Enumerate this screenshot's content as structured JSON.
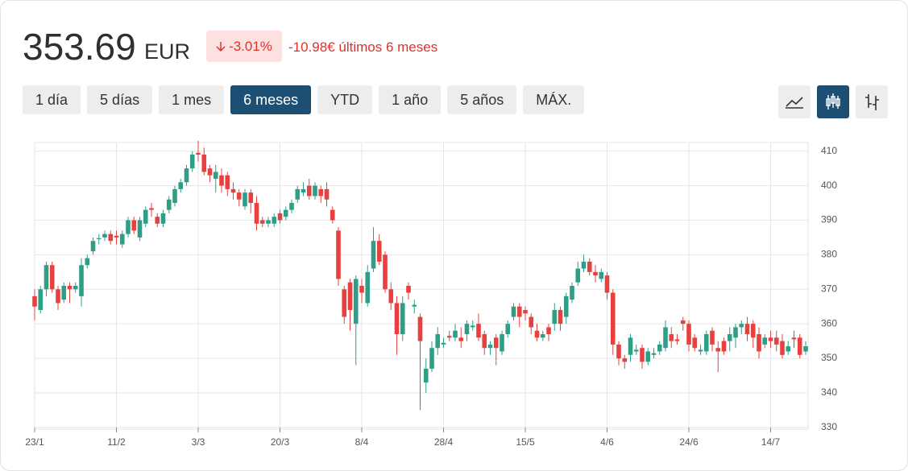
{
  "header": {
    "price": "353.69",
    "currency": "EUR",
    "change": "-3.01%",
    "change_period": "-10.98€ últimos 6 meses"
  },
  "ranges": [
    "1 día",
    "5 días",
    "1 mes",
    "6 meses",
    "YTD",
    "1 año",
    "5 años",
    "MÁX."
  ],
  "selected_range": "6 meses",
  "chart_data": {
    "type": "candlestick",
    "categories": [
      "23/1",
      null,
      null,
      null,
      null,
      null,
      null,
      null,
      null,
      null,
      null,
      null,
      null,
      null,
      "11/2",
      null,
      null,
      null,
      null,
      null,
      null,
      null,
      null,
      null,
      null,
      null,
      null,
      null,
      "3/3",
      null,
      null,
      null,
      null,
      null,
      null,
      null,
      null,
      null,
      null,
      null,
      null,
      null,
      "20/3",
      null,
      null,
      null,
      null,
      null,
      null,
      null,
      null,
      null,
      null,
      null,
      null,
      null,
      "8/4",
      null,
      null,
      null,
      null,
      null,
      null,
      null,
      null,
      null,
      null,
      null,
      null,
      null,
      "28/4",
      null,
      null,
      null,
      null,
      null,
      null,
      null,
      null,
      null,
      null,
      null,
      null,
      null,
      "15/5",
      null,
      null,
      null,
      null,
      null,
      null,
      null,
      null,
      null,
      null,
      null,
      null,
      null,
      "4/6",
      null,
      null,
      null,
      null,
      null,
      null,
      null,
      null,
      null,
      null,
      null,
      null,
      null,
      "24/6",
      null,
      null,
      null,
      null,
      null,
      null,
      null,
      null,
      null,
      null,
      null,
      null,
      null,
      "14/7",
      null,
      null,
      null,
      null,
      null,
      null
    ],
    "open": [
      368,
      364,
      370,
      377,
      370,
      367,
      371,
      370,
      368,
      377,
      381,
      384.5,
      385,
      386,
      385.5,
      383,
      386,
      390,
      385,
      389,
      393.5,
      391,
      389,
      393,
      395,
      399,
      401,
      405,
      409.5,
      409,
      405,
      402,
      403,
      403,
      399,
      398,
      394,
      398,
      395,
      390,
      389,
      389,
      392,
      391,
      393,
      396,
      398,
      400,
      397,
      399,
      399,
      393,
      387,
      370,
      372,
      360,
      371,
      366,
      376,
      384,
      380,
      370,
      366,
      357,
      371,
      365,
      362,
      343,
      347,
      353,
      354,
      356.5,
      356,
      356,
      357,
      359,
      360,
      357,
      353,
      356,
      352,
      357,
      362,
      365,
      364,
      362,
      358,
      356,
      359,
      360,
      364,
      362,
      367,
      372,
      376,
      378,
      375,
      373,
      374,
      369,
      354,
      350,
      351,
      352,
      353,
      349,
      351,
      352,
      353,
      357,
      355.5,
      361,
      360,
      356,
      352,
      352,
      358,
      353,
      355,
      355,
      356,
      359,
      360,
      360,
      357,
      354,
      356,
      356,
      355,
      352,
      356,
      356,
      352
    ],
    "high": [
      370,
      371,
      378,
      378,
      371,
      372,
      372,
      372,
      379,
      380,
      385,
      386,
      387,
      387,
      387,
      387,
      391,
      391,
      391,
      394,
      395,
      392,
      393,
      397,
      400,
      402,
      406,
      410,
      413,
      411,
      406,
      406,
      405,
      404,
      401,
      399,
      399,
      399,
      397,
      391,
      391,
      392,
      393,
      394,
      396,
      400,
      401,
      402,
      401,
      400,
      401,
      394,
      388,
      371,
      373,
      374,
      373,
      377,
      388,
      386,
      381,
      372,
      368,
      368,
      372,
      367,
      363,
      350,
      355,
      359,
      356,
      358,
      360,
      359,
      361,
      361,
      363,
      358,
      355,
      357,
      358,
      361,
      366,
      366,
      365,
      363,
      360,
      358,
      360,
      366,
      365,
      369,
      372,
      378,
      380,
      379,
      377,
      376,
      375,
      370,
      355,
      351,
      357,
      354,
      354,
      353,
      353,
      355,
      361,
      359,
      357,
      362,
      361,
      357,
      354,
      358,
      359,
      355,
      356,
      359,
      360,
      361,
      362,
      361,
      359,
      357,
      358,
      358,
      357,
      355,
      358,
      357,
      355
    ],
    "low": [
      361,
      363,
      368,
      369,
      364,
      366,
      366,
      369,
      365,
      376,
      380,
      383,
      384,
      383,
      383,
      382,
      385,
      386,
      384,
      388,
      391,
      388,
      388,
      392,
      394,
      398,
      400,
      404,
      407,
      403,
      401,
      398,
      398,
      397,
      396,
      394,
      393,
      392,
      387,
      388,
      388,
      388,
      389,
      390,
      392,
      395,
      397,
      396,
      396,
      395,
      394,
      389,
      371,
      360,
      358,
      348,
      366,
      365,
      375,
      377,
      369,
      364,
      351,
      355,
      367,
      363,
      335,
      340,
      346,
      351,
      353,
      355,
      355,
      353,
      355,
      358,
      355,
      351,
      351,
      348,
      351,
      356,
      361,
      359,
      361,
      357,
      355,
      355,
      355,
      358,
      358,
      360,
      366,
      371,
      375,
      374,
      372,
      372,
      367,
      351,
      348,
      347,
      349,
      351,
      347,
      348,
      350,
      351,
      352,
      353,
      354,
      358,
      352,
      352,
      351,
      351,
      352,
      346,
      351,
      352,
      353,
      357,
      355,
      353,
      350,
      353,
      353,
      352,
      350,
      351,
      353,
      350,
      351
    ],
    "close": [
      365,
      370,
      377,
      370,
      366,
      371,
      370,
      371,
      377,
      379,
      384,
      384.8,
      386,
      384,
      385,
      386,
      390,
      387,
      390,
      393,
      393,
      389,
      392,
      396,
      399,
      401,
      405,
      409,
      409,
      404,
      403,
      404,
      400,
      399,
      398,
      396,
      398,
      395,
      389,
      389,
      390,
      391,
      390,
      393,
      395,
      399,
      399,
      397,
      400,
      397,
      396,
      390,
      373,
      362,
      364,
      373,
      369,
      375,
      384,
      378,
      370,
      366,
      357,
      366,
      369,
      365.5,
      355,
      347,
      353,
      357,
      354.5,
      356,
      358,
      355,
      360,
      359.5,
      356,
      353,
      354,
      353,
      357,
      360,
      365,
      362,
      363,
      359,
      356,
      357,
      357,
      364,
      360,
      368,
      371,
      376,
      378,
      375,
      374,
      375,
      369,
      354,
      350,
      349,
      356,
      352.5,
      349,
      352,
      351.5,
      354,
      359,
      355,
      355,
      360,
      354,
      353,
      352.5,
      357,
      354,
      352,
      352,
      357,
      359,
      360,
      357,
      356,
      352,
      356,
      355,
      354,
      351,
      353.5,
      355.5,
      351,
      353.5
    ],
    "up_color": "#2f9e86",
    "down_color": "#e8403f",
    "ylim": [
      329.5,
      412.5
    ],
    "yticks": [
      330,
      340,
      350,
      360,
      370,
      380,
      390,
      400,
      410
    ],
    "grid": true
  }
}
